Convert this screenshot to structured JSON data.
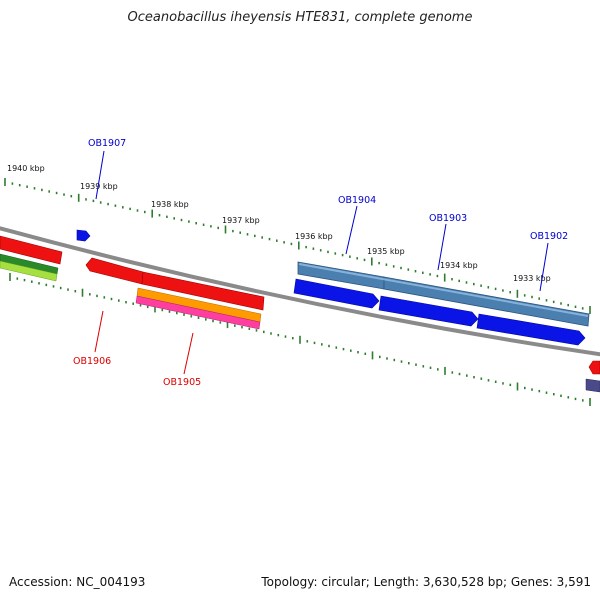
{
  "title": "Oceanobacillus iheyensis HTE831, complete genome",
  "footer": {
    "accession": "Accession: NC_004193",
    "summary": "Topology: circular; Length: 3,630,528 bp; Genes: 3,591"
  },
  "ruler_labels": [
    "1940 kbp",
    "1939 kbp",
    "1938 kbp",
    "1937 kbp",
    "1936 kbp",
    "1935 kbp",
    "1934 kbp",
    "1933 kbp"
  ],
  "gene_labels": {
    "above": [
      "OB1907",
      "OB1904",
      "OB1903",
      "OB1902"
    ],
    "below": [
      "OB1906",
      "OB1905"
    ]
  },
  "colors": {
    "backbone": "#8a8a8a",
    "tick": "#2e7d2e",
    "label_blue": "#0000cc",
    "label_red": "#dd0000",
    "gene_red": "#ee1111",
    "gene_blue": "#0a14e6",
    "gene_steelblue": "#4a7fb0",
    "gene_orange": "#ff9a00",
    "gene_pink": "#ff3fa0",
    "gene_green": "#2a8a2a",
    "gene_lightgreen": "#a6e040",
    "gene_slate": "#4a4a8a"
  }
}
